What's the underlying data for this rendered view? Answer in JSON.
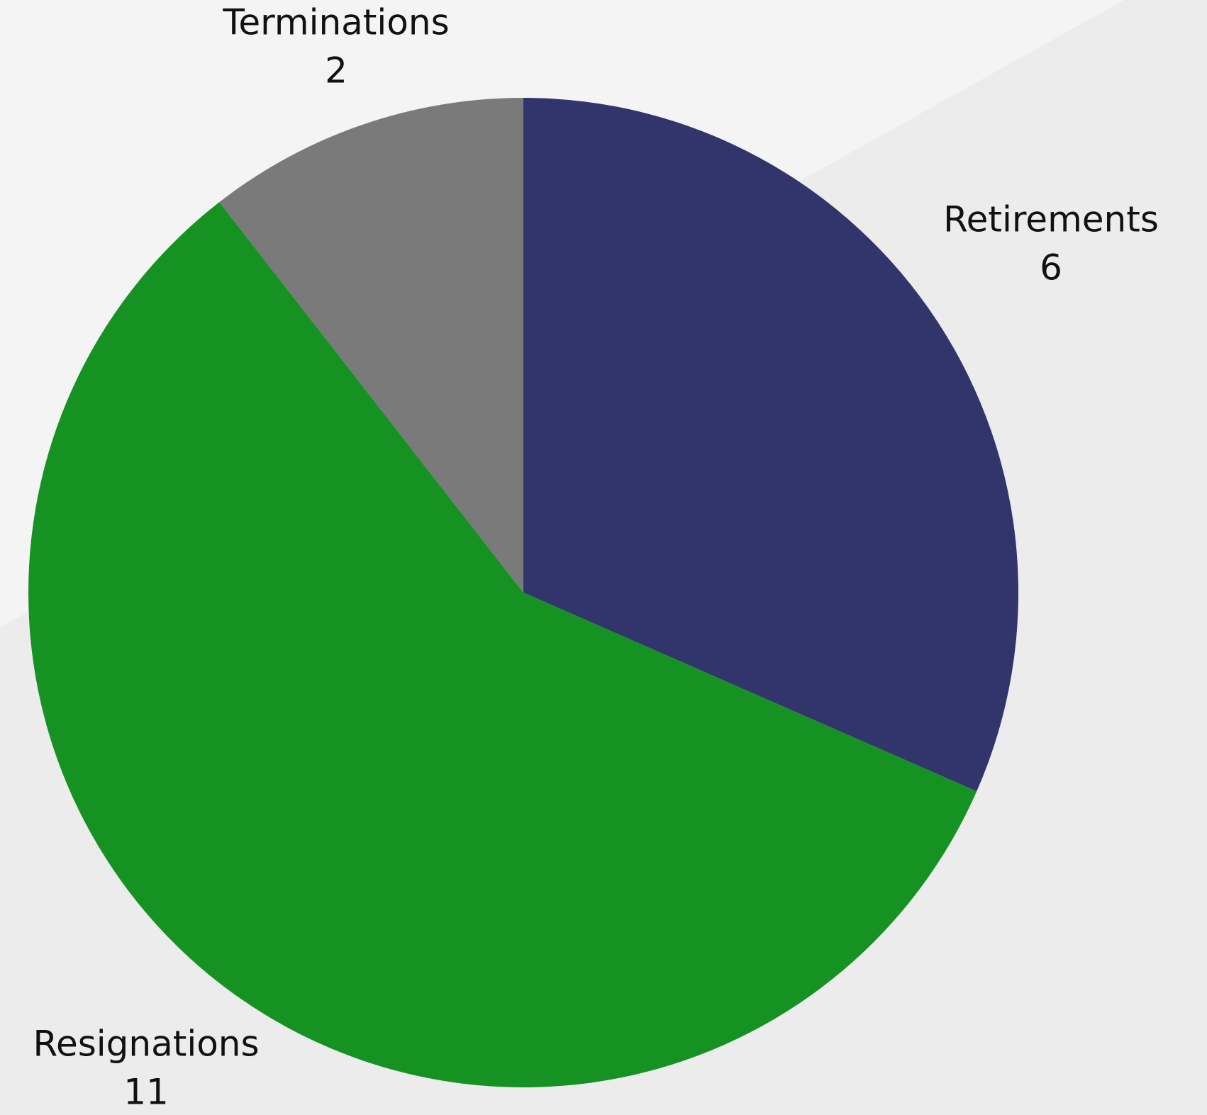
{
  "chart_data": {
    "type": "pie",
    "categories": [
      "Retirements",
      "Resignations",
      "Terminations"
    ],
    "values": [
      6,
      11,
      2
    ],
    "colors": [
      "#31356c",
      "#169223",
      "#7a7a7a"
    ]
  }
}
